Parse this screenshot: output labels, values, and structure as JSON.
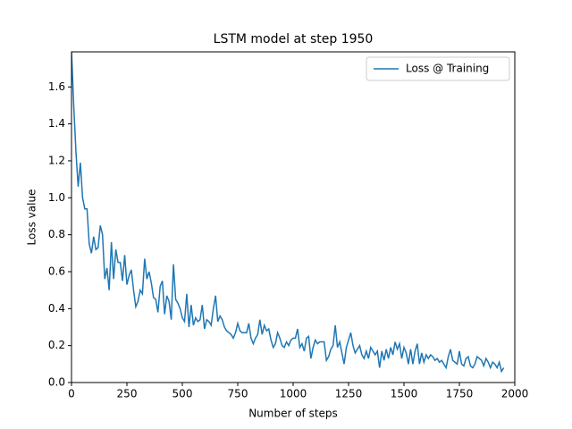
{
  "chart_data": {
    "type": "line",
    "title": "LSTM model at step 1950",
    "x_label": "Number of steps",
    "y_label": "Loss value",
    "x": [
      0,
      10,
      20,
      30,
      40,
      50,
      60,
      70,
      80,
      90,
      100,
      110,
      120,
      130,
      140,
      150,
      160,
      170,
      180,
      190,
      200,
      210,
      220,
      230,
      240,
      250,
      260,
      270,
      280,
      290,
      300,
      310,
      320,
      330,
      340,
      350,
      360,
      370,
      380,
      390,
      400,
      410,
      420,
      430,
      440,
      450,
      460,
      470,
      480,
      490,
      500,
      510,
      520,
      530,
      540,
      550,
      560,
      570,
      580,
      590,
      600,
      610,
      620,
      630,
      640,
      650,
      660,
      670,
      680,
      690,
      700,
      710,
      720,
      730,
      740,
      750,
      760,
      770,
      780,
      790,
      800,
      810,
      820,
      830,
      840,
      850,
      860,
      870,
      880,
      890,
      900,
      910,
      920,
      930,
      940,
      950,
      960,
      970,
      980,
      990,
      1000,
      1010,
      1020,
      1030,
      1040,
      1050,
      1060,
      1070,
      1080,
      1090,
      1100,
      1110,
      1120,
      1130,
      1140,
      1150,
      1160,
      1170,
      1180,
      1190,
      1200,
      1210,
      1220,
      1230,
      1240,
      1250,
      1260,
      1270,
      1280,
      1290,
      1300,
      1310,
      1320,
      1330,
      1340,
      1350,
      1360,
      1370,
      1380,
      1390,
      1400,
      1410,
      1420,
      1430,
      1440,
      1450,
      1460,
      1470,
      1480,
      1490,
      1500,
      1510,
      1520,
      1530,
      1540,
      1550,
      1560,
      1570,
      1580,
      1590,
      1600,
      1610,
      1620,
      1630,
      1640,
      1650,
      1660,
      1670,
      1680,
      1690,
      1700,
      1710,
      1720,
      1730,
      1740,
      1750,
      1760,
      1770,
      1780,
      1790,
      1800,
      1810,
      1820,
      1830,
      1840,
      1850,
      1860,
      1870,
      1880,
      1890,
      1900,
      1910,
      1920,
      1930,
      1940,
      1950
    ],
    "series": [
      {
        "name": "Loss @ Training",
        "color": "#1f77b4",
        "values": [
          1.79,
          1.5,
          1.25,
          1.06,
          1.19,
          1.0,
          0.94,
          0.94,
          0.75,
          0.7,
          0.79,
          0.72,
          0.73,
          0.85,
          0.8,
          0.56,
          0.62,
          0.5,
          0.76,
          0.56,
          0.72,
          0.65,
          0.65,
          0.55,
          0.69,
          0.53,
          0.58,
          0.61,
          0.5,
          0.41,
          0.44,
          0.5,
          0.48,
          0.67,
          0.56,
          0.6,
          0.54,
          0.46,
          0.45,
          0.38,
          0.52,
          0.55,
          0.37,
          0.47,
          0.44,
          0.34,
          0.64,
          0.45,
          0.43,
          0.4,
          0.35,
          0.33,
          0.48,
          0.3,
          0.42,
          0.31,
          0.35,
          0.33,
          0.34,
          0.42,
          0.29,
          0.34,
          0.33,
          0.31,
          0.4,
          0.47,
          0.33,
          0.36,
          0.34,
          0.3,
          0.28,
          0.27,
          0.26,
          0.24,
          0.27,
          0.32,
          0.28,
          0.27,
          0.27,
          0.27,
          0.32,
          0.24,
          0.21,
          0.24,
          0.26,
          0.34,
          0.26,
          0.31,
          0.28,
          0.29,
          0.23,
          0.19,
          0.21,
          0.27,
          0.24,
          0.2,
          0.19,
          0.22,
          0.2,
          0.23,
          0.24,
          0.24,
          0.29,
          0.19,
          0.21,
          0.17,
          0.24,
          0.25,
          0.13,
          0.19,
          0.23,
          0.21,
          0.22,
          0.22,
          0.22,
          0.12,
          0.14,
          0.18,
          0.2,
          0.31,
          0.19,
          0.22,
          0.16,
          0.1,
          0.19,
          0.23,
          0.27,
          0.2,
          0.16,
          0.18,
          0.2,
          0.15,
          0.13,
          0.17,
          0.13,
          0.19,
          0.17,
          0.15,
          0.17,
          0.08,
          0.17,
          0.12,
          0.18,
          0.13,
          0.19,
          0.15,
          0.22,
          0.18,
          0.21,
          0.13,
          0.19,
          0.16,
          0.1,
          0.18,
          0.1,
          0.17,
          0.21,
          0.1,
          0.16,
          0.11,
          0.15,
          0.13,
          0.15,
          0.14,
          0.12,
          0.13,
          0.11,
          0.12,
          0.1,
          0.08,
          0.14,
          0.18,
          0.12,
          0.11,
          0.1,
          0.17,
          0.1,
          0.09,
          0.13,
          0.14,
          0.09,
          0.08,
          0.1,
          0.14,
          0.13,
          0.12,
          0.09,
          0.13,
          0.11,
          0.08,
          0.11,
          0.1,
          0.08,
          0.11,
          0.06,
          0.08
        ]
      }
    ],
    "xlim": [
      0,
      2000
    ],
    "xticks": [
      0,
      250,
      500,
      750,
      1000,
      1250,
      1500,
      1750,
      2000
    ],
    "ylim": [
      0,
      1.79
    ],
    "yticks": [
      {
        "value": 0,
        "label": "0.0"
      },
      0.2,
      0.4,
      0.6,
      0.8,
      {
        "value": 1,
        "label": "1.0"
      },
      1.2,
      1.4,
      1.6
    ],
    "legend": "upper right"
  }
}
